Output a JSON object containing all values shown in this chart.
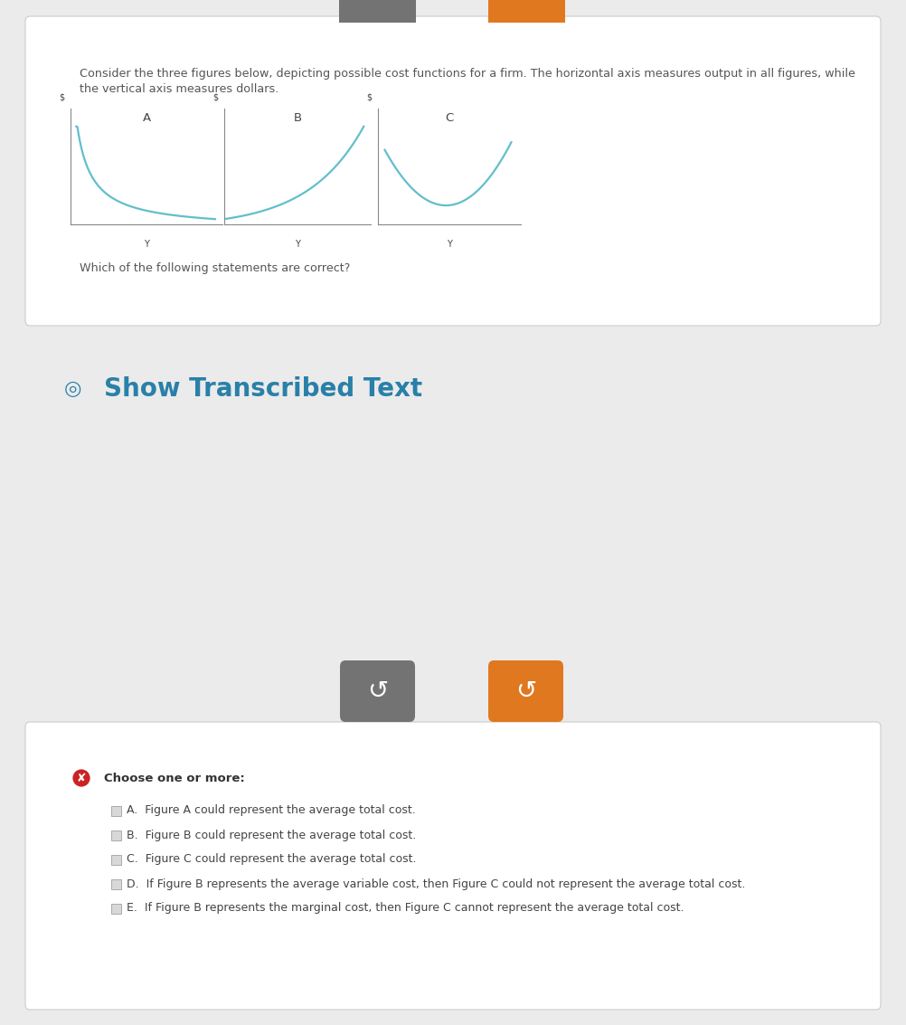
{
  "page_bg": "#ebebeb",
  "card_bg": "#ffffff",
  "card_border": "#cccccc",
  "question_text_line1": "Consider the three figures below, depicting possible cost functions for a firm. The horizontal axis measures output in all figures, while",
  "question_text_line2": "the vertical axis measures dollars.",
  "question_text_color": "#555555",
  "question_text_size": 9.2,
  "fig_label_color": "#444444",
  "fig_label_size": 9.5,
  "axis_color": "#888888",
  "curve_color": "#62bfcc",
  "curve_lw": 1.6,
  "which_text": "Which of the following statements are correct?",
  "which_text_color": "#555555",
  "which_text_size": 9.2,
  "show_transcribed_color": "#2980a8",
  "show_transcribed_text": "Show Transcribed Text",
  "show_transcribed_size": 20,
  "btn_gray_color": "#737373",
  "btn_orange_color": "#e07820",
  "choose_text": "Choose one or more:",
  "choose_text_color": "#333333",
  "choose_text_size": 9.5,
  "option_text_color": "#444444",
  "option_text_size": 9.0,
  "options": [
    "A.  Figure A could represent the average total cost.",
    "B.  Figure B could represent the average total cost.",
    "C.  Figure C could represent the average total cost.",
    "D.  If Figure B represents the average variable cost, then Figure C could not represent the average total cost.",
    "E.  If Figure B represents the marginal cost, then Figure C cannot represent the average total cost."
  ]
}
